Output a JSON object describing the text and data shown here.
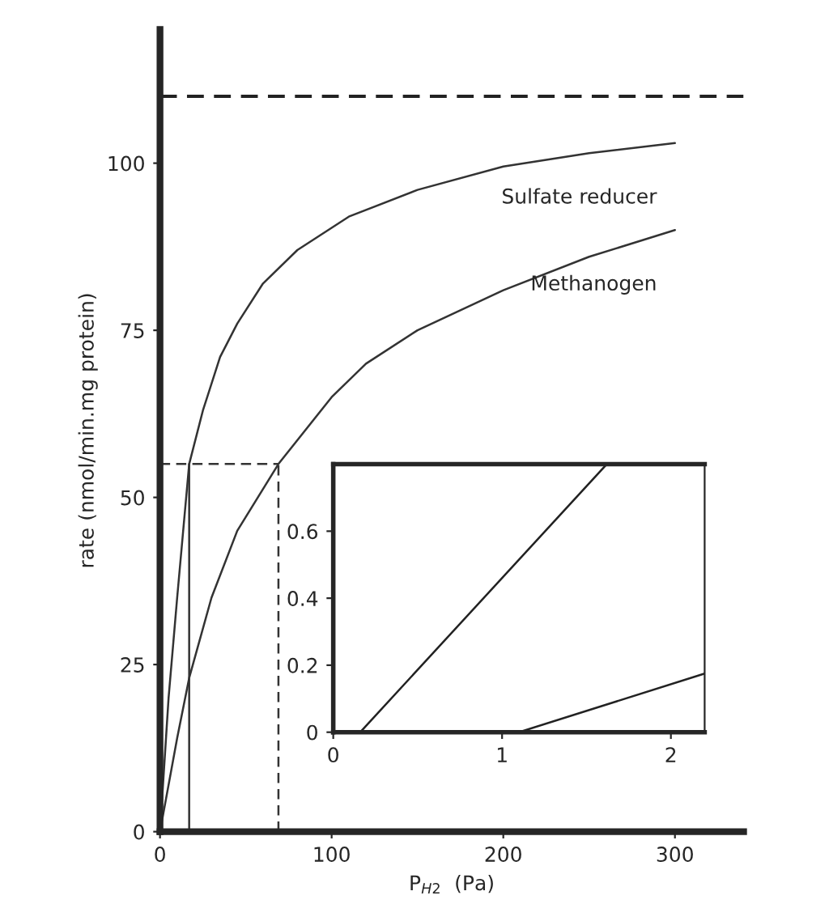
{
  "chart_data": [
    {
      "type": "line",
      "xlabel": "P$_{H2}$  (Pa)",
      "ylabel": "rate (nmol/min.mg protein)",
      "xlim": [
        0,
        340
      ],
      "ylim": [
        0,
        120
      ],
      "xticks": [
        0,
        100,
        200,
        300
      ],
      "yticks": [
        0,
        25,
        50,
        75,
        100
      ],
      "series": [
        {
          "name": "Sulfate reducer",
          "color": "#333333",
          "line_style": "solid",
          "x": [
            0,
            5,
            10,
            17,
            25,
            35,
            45,
            60,
            80,
            110,
            150,
            200,
            250,
            300
          ],
          "values": [
            0,
            20,
            35,
            55,
            63,
            71,
            76,
            82,
            87,
            92,
            96,
            99.5,
            101.5,
            103
          ]
        },
        {
          "name": "Methanogen",
          "color": "#333333",
          "line_style": "solid",
          "x": [
            0,
            10,
            17,
            30,
            45,
            69,
            100,
            120,
            150,
            200,
            250,
            300
          ],
          "values": [
            0,
            14,
            23,
            35,
            45,
            55,
            65,
            70,
            75,
            81,
            86,
            90
          ]
        },
        {
          "color": "#333333",
          "line_style": "dashed",
          "x": [
            0,
            69
          ],
          "values": [
            55,
            55
          ]
        },
        {
          "color": "#333333",
          "line_style": "solid",
          "x": [
            17,
            17
          ],
          "values": [
            0,
            55
          ]
        },
        {
          "color": "#333333",
          "line_style": "dashed",
          "x": [
            69,
            69
          ],
          "values": [
            0,
            55
          ]
        }
      ],
      "ref_lines": [
        {
          "axis": "y",
          "value": 110,
          "color": "#222222",
          "line_style": "dashed"
        }
      ]
    },
    {
      "type": "line",
      "xlim": [
        0,
        2.2
      ],
      "ylim": [
        0,
        0.8
      ],
      "xticks": [
        0,
        1,
        2
      ],
      "yticks": [
        0,
        0.2,
        0.4,
        0.6
      ],
      "series": [
        {
          "color": "#222222",
          "x": [
            0,
            0.16,
            1.62
          ],
          "values": [
            0,
            0,
            0.8
          ]
        },
        {
          "color": "#222222",
          "x": [
            0,
            1.1,
            2.2
          ],
          "values": [
            0,
            0,
            0.175
          ]
        }
      ]
    }
  ]
}
